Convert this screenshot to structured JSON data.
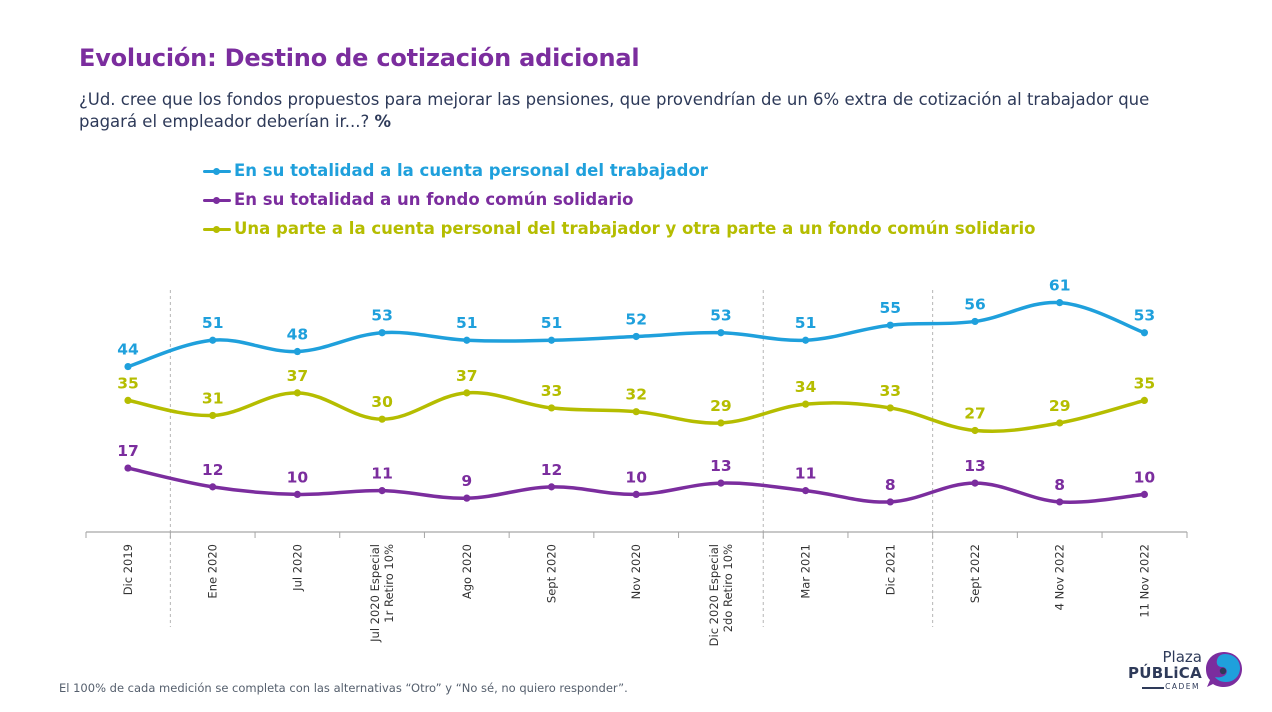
{
  "header": {
    "title": "Evolución: Destino de cotización adicional",
    "subtitle": "¿Ud. cree que los fondos propuestos para mejorar las pensiones, que provendrían de un 6% extra de cotización al trabajador que pagará el empleador deberían ir...?",
    "subtitle_suffix": "%"
  },
  "footnote": "El 100% de cada medición se completa con las alternativas “Otro” y “No sé, no quiero responder”.",
  "logo": {
    "line1": "Plaza",
    "line2": "PÚBLiCA",
    "line3": "CADEM",
    "colors": {
      "dark": "#2E3A59",
      "blue": "#1FA0DC",
      "purple": "#7B2D9E"
    }
  },
  "chart_data": {
    "type": "line",
    "title": "Evolución: Destino de cotización adicional",
    "xlabel": "",
    "ylabel": "%",
    "ylim": [
      0,
      70
    ],
    "grid": false,
    "legend_position": "top",
    "categories": [
      "Dic 2019",
      "Ene 2020",
      "Jul 2020",
      "Jul 2020 Especial\n1r Retiro 10%",
      "Ago 2020",
      "Sept 2020",
      "Nov 2020",
      "Dic 2020 Especial\n2do Retiro 10%",
      "Mar 2021",
      "Dic 2021",
      "Sept 2022",
      "4 Nov 2022",
      "11 Nov 2022"
    ],
    "separators_after_index": [
      0,
      7,
      9
    ],
    "series": [
      {
        "name": "En su totalidad a la cuenta personal del trabajador",
        "color": "#1FA0DC",
        "values": [
          44,
          51,
          48,
          53,
          51,
          51,
          52,
          53,
          51,
          55,
          56,
          61,
          53
        ]
      },
      {
        "name": "En su totalidad a un fondo común solidario",
        "color": "#7B2D9E",
        "values": [
          17,
          12,
          10,
          11,
          9,
          12,
          10,
          13,
          11,
          8,
          13,
          8,
          10
        ]
      },
      {
        "name": "Una parte a la cuenta personal del trabajador y otra parte a un fondo común solidario",
        "color": "#B5BD00",
        "values": [
          35,
          31,
          37,
          30,
          37,
          33,
          32,
          29,
          34,
          33,
          27,
          29,
          35
        ]
      }
    ]
  }
}
